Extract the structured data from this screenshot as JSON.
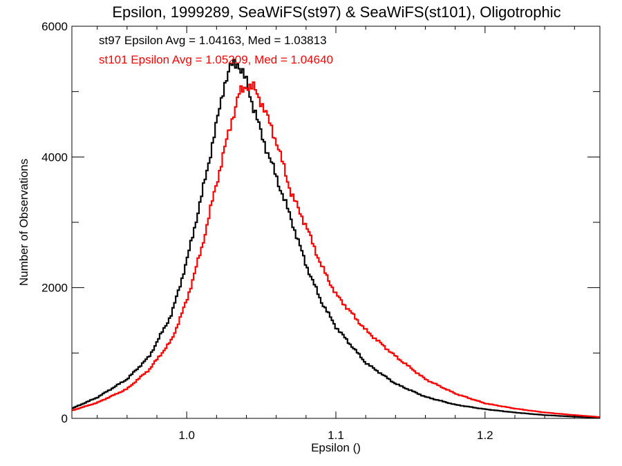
{
  "chart_data": {
    "type": "line",
    "step": true,
    "title": "Epsilon, 1999289, SeaWiFS(st97) & SeaWiFS(st101), Oligotrophic",
    "xlabel": "Epsilon ()",
    "ylabel": "Number of Observations",
    "xlim": [
      0.923,
      1.277
    ],
    "ylim": [
      0,
      6000
    ],
    "xticks": [
      1.0,
      1.1,
      1.2
    ],
    "xtick_labels": [
      "1.0",
      "1.1",
      "1.2"
    ],
    "xminor_step": 0.02,
    "yticks": [
      0,
      2000,
      4000,
      6000
    ],
    "ytick_labels": [
      "0",
      "2000",
      "4000",
      "6000"
    ],
    "yminor_step": 1000,
    "grid": false,
    "bin_width": 0.0012,
    "annotations": [
      {
        "text": "st97 Epsilon Avg = 1.04163, Med = 1.03813",
        "color": "#000000"
      },
      {
        "text": "st101 Epsilon Avg = 1.05209, Med = 1.04640",
        "color": "#ff0000"
      }
    ],
    "series": [
      {
        "color": "#000000",
        "x": [
          0.923,
          0.94,
          0.96,
          0.975,
          0.99,
          1.0,
          1.01,
          1.02,
          1.025,
          1.03,
          1.034,
          1.04,
          1.05,
          1.06,
          1.07,
          1.08,
          1.09,
          1.1,
          1.12,
          1.14,
          1.16,
          1.18,
          1.2,
          1.22,
          1.24,
          1.26,
          1.277
        ],
        "y": [
          150,
          320,
          600,
          950,
          1600,
          2400,
          3400,
          4500,
          5100,
          5400,
          5450,
          5150,
          4350,
          3700,
          3050,
          2350,
          1800,
          1400,
          850,
          530,
          330,
          210,
          140,
          90,
          50,
          25,
          10
        ]
      },
      {
        "color": "#ff0000",
        "x": [
          0.923,
          0.94,
          0.96,
          0.975,
          0.99,
          1.0,
          1.01,
          1.02,
          1.03,
          1.035,
          1.04,
          1.045,
          1.05,
          1.06,
          1.07,
          1.08,
          1.09,
          1.1,
          1.12,
          1.14,
          1.16,
          1.18,
          1.2,
          1.22,
          1.24,
          1.26,
          1.277
        ],
        "y": [
          120,
          240,
          450,
          750,
          1200,
          1800,
          2600,
          3600,
          4550,
          4950,
          5100,
          5050,
          4850,
          4250,
          3450,
          2950,
          2350,
          1900,
          1350,
          950,
          600,
          380,
          230,
          150,
          90,
          50,
          20
        ]
      }
    ]
  }
}
